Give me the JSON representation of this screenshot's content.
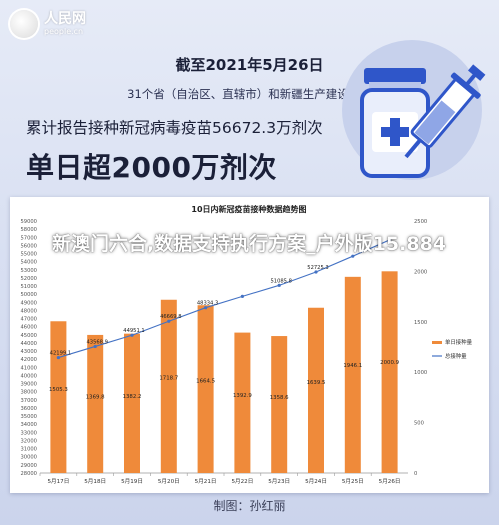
{
  "brand": {
    "name_cn": "人民网",
    "name_en": "people.cn"
  },
  "header": {
    "date_line": "截至2021年5月26日",
    "region_line": "31个省（自治区、直辖市）和新疆生产建设兵团",
    "total_line": "累计报告接种新冠病毒疫苗56672.3万剂次",
    "big_line": "单日超2000万剂次"
  },
  "overlay_title": "新澳门六合,数据支持执行方案_户外版15.884",
  "credit": "制图：孙红丽",
  "colors": {
    "bar": "#ef8a3a",
    "line": "#4472c4",
    "background": "#dfe5f4",
    "text_dark": "#1b2038"
  },
  "icons": [
    "vaccine-vial-icon",
    "syringe-icon"
  ],
  "chart_data": {
    "type": "bar",
    "title": "10日内新冠疫苗接种数据趋势图",
    "categories": [
      "5月17日",
      "5月18日",
      "5月19日",
      "5月20日",
      "5月21日",
      "5月22日",
      "5月23日",
      "5月24日",
      "5月25日",
      "5月26日"
    ],
    "series": [
      {
        "name": "单日接种量",
        "chart": "bar",
        "axis": "right",
        "values": [
          1505.3,
          1369.8,
          1382.2,
          1718.7,
          1664.5,
          1392.9,
          1358.6,
          1639.5,
          1946.1,
          2000.9
        ],
        "labels": [
          "1505.3",
          "1369.8",
          "1382.2",
          "1718.7",
          "1664.5",
          "1392.9",
          "1358.6",
          "1639.5",
          "1946.1",
          "2000.9"
        ]
      },
      {
        "name": "总接种量",
        "chart": "line",
        "axis": "left",
        "values": [
          42199.1,
          43568.9,
          44951.1,
          46669.8,
          48334.3,
          49727.2,
          51085.8,
          52725.3,
          54671.4,
          56672.3
        ],
        "labels": [
          "42199.1",
          "43568.9",
          "44951.1",
          "46669.8",
          "48334.3",
          "",
          "51085.8",
          "52725.3",
          "",
          ""
        ]
      }
    ],
    "y_left": {
      "min": 28000,
      "max": 59000,
      "step": 1000,
      "ticks": [
        "28000",
        "29000",
        "30000",
        "31000",
        "32000",
        "33000",
        "34000",
        "35000",
        "36000",
        "37000",
        "38000",
        "39000",
        "40000",
        "41000",
        "42000",
        "43000",
        "44000",
        "45000",
        "46000",
        "47000",
        "48000",
        "49000",
        "50000",
        "51000",
        "52000",
        "53000",
        "54000",
        "55000",
        "56000",
        "57000",
        "58000",
        "59000"
      ]
    },
    "y_right": {
      "min": 0,
      "max": 2500,
      "ticks": [
        "0",
        "500",
        "1000",
        "1500",
        "2000",
        "2500"
      ]
    },
    "grid": false,
    "legend_position": "right"
  }
}
